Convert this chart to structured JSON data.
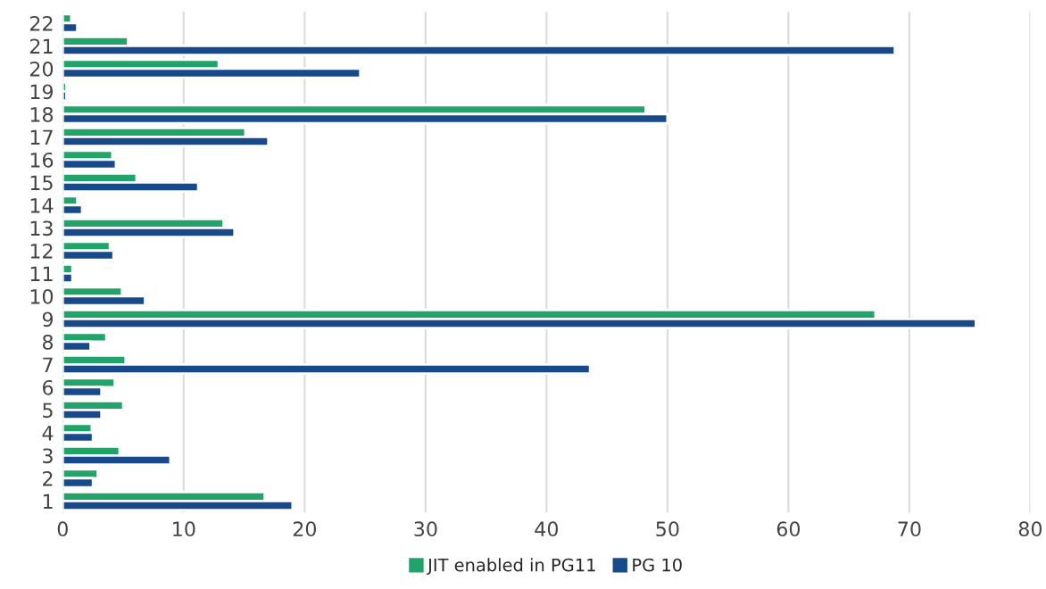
{
  "chart_data": {
    "type": "bar",
    "orientation": "horizontal",
    "categories": [
      "22",
      "21",
      "20",
      "19",
      "18",
      "17",
      "16",
      "15",
      "14",
      "13",
      "12",
      "11",
      "10",
      "9",
      "8",
      "7",
      "6",
      "5",
      "4",
      "3",
      "2",
      "1"
    ],
    "series": [
      {
        "name": "JIT enabled in PG11",
        "color": "#22a36a",
        "values": [
          0.7,
          5.4,
          12.9,
          0.3,
          48.2,
          15.1,
          4.1,
          6.1,
          1.2,
          13.3,
          3.9,
          0.8,
          4.9,
          67.2,
          3.6,
          5.2,
          4.3,
          5.0,
          2.4,
          4.7,
          2.9,
          16.7
        ]
      },
      {
        "name": "PG 10",
        "color": "#184a8b",
        "values": [
          1.2,
          68.8,
          24.6,
          0.3,
          50.0,
          17.0,
          4.4,
          11.2,
          1.6,
          14.2,
          4.2,
          0.8,
          6.8,
          75.5,
          2.3,
          43.6,
          3.2,
          3.2,
          2.5,
          8.9,
          2.5,
          19.0
        ]
      }
    ],
    "xlim": [
      0,
      80
    ],
    "xticks": [
      0,
      10,
      20,
      30,
      40,
      50,
      60,
      70,
      80
    ],
    "grid": "x",
    "legend": "bottom"
  }
}
